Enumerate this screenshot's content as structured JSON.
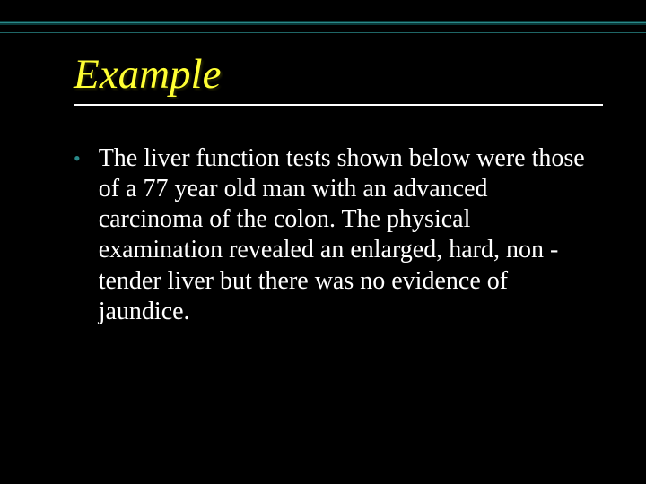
{
  "slide": {
    "title": "Example",
    "bullet_glyph": "•",
    "body": "The liver function tests shown below were those of a 77 year old man with an advanced carcinoma of the colon. The physical examination revealed an enlarged, hard, non -tender liver but there was no evidence of jaundice."
  },
  "style": {
    "background_color": "#000000",
    "title_color": "#ffff33",
    "title_fontsize": 47,
    "title_style": "italic",
    "body_color": "#ffffff",
    "body_fontsize": 28,
    "rule_color": "#2a8a8a",
    "bullet_color": "#2a8a8a",
    "underline_color": "#ffffff",
    "font_family": "Times New Roman"
  }
}
